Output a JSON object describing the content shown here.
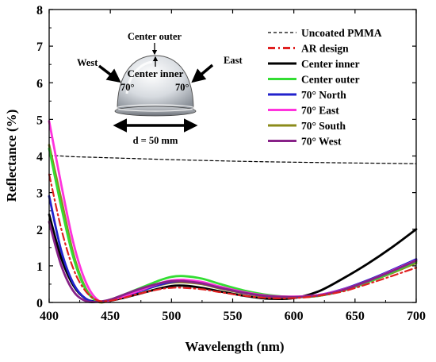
{
  "chart_data": {
    "type": "line",
    "xlabel": "Wavelength (nm)",
    "ylabel": "Reflectance (%)",
    "xlim": [
      400,
      700
    ],
    "ylim": [
      0,
      8
    ],
    "xticks": [
      400,
      450,
      500,
      550,
      600,
      650,
      700
    ],
    "yticks": [
      0,
      1,
      2,
      3,
      4,
      5,
      6,
      7,
      8
    ],
    "grid": false,
    "legend_position": "top-right",
    "series": [
      {
        "name": "Uncoated PMMA",
        "color": "#000000",
        "style": "dashed",
        "width": 1.2,
        "x": [
          400,
          410,
          420,
          440,
          460,
          500,
          550,
          600,
          650,
          700
        ],
        "y": [
          4.02,
          4.0,
          3.98,
          3.96,
          3.94,
          3.9,
          3.86,
          3.83,
          3.81,
          3.79
        ]
      },
      {
        "name": "AR design",
        "color": "#e02020",
        "style": "dashdot",
        "width": 2.2,
        "x": [
          400,
          410,
          420,
          430,
          440,
          450,
          460,
          475,
          490,
          500,
          510,
          525,
          540,
          560,
          580,
          600,
          620,
          640,
          660,
          680,
          700
        ],
        "y": [
          3.5,
          2.0,
          0.9,
          0.3,
          0.05,
          0.05,
          0.12,
          0.25,
          0.36,
          0.4,
          0.4,
          0.36,
          0.28,
          0.18,
          0.12,
          0.12,
          0.18,
          0.3,
          0.5,
          0.72,
          0.95
        ]
      },
      {
        "name": "Center inner",
        "color": "#000000",
        "style": "solid",
        "width": 2.8,
        "x": [
          400,
          410,
          420,
          430,
          440,
          450,
          460,
          475,
          490,
          500,
          510,
          525,
          540,
          560,
          580,
          600,
          620,
          640,
          660,
          680,
          700
        ],
        "y": [
          2.4,
          1.2,
          0.45,
          0.1,
          0.02,
          0.05,
          0.12,
          0.25,
          0.38,
          0.45,
          0.46,
          0.4,
          0.3,
          0.18,
          0.1,
          0.12,
          0.3,
          0.65,
          1.05,
          1.5,
          2.0
        ]
      },
      {
        "name": "Center outer",
        "color": "#33dd33",
        "style": "solid",
        "width": 2.8,
        "x": [
          400,
          410,
          420,
          430,
          440,
          450,
          460,
          475,
          490,
          500,
          510,
          525,
          540,
          560,
          580,
          600,
          620,
          640,
          660,
          680,
          700
        ],
        "y": [
          4.2,
          2.6,
          1.2,
          0.35,
          0.03,
          0.08,
          0.2,
          0.4,
          0.6,
          0.7,
          0.72,
          0.65,
          0.5,
          0.32,
          0.2,
          0.15,
          0.18,
          0.32,
          0.55,
          0.82,
          1.12
        ]
      },
      {
        "name": "70° North",
        "color": "#2222cc",
        "style": "solid",
        "width": 2.8,
        "x": [
          400,
          410,
          420,
          430,
          440,
          450,
          460,
          475,
          490,
          500,
          510,
          525,
          540,
          560,
          580,
          600,
          620,
          640,
          660,
          680,
          700
        ],
        "y": [
          2.9,
          1.4,
          0.5,
          0.1,
          0.02,
          0.06,
          0.16,
          0.32,
          0.48,
          0.56,
          0.58,
          0.52,
          0.4,
          0.26,
          0.17,
          0.15,
          0.2,
          0.36,
          0.6,
          0.88,
          1.18
        ]
      },
      {
        "name": "70° East",
        "color": "#ff33dd",
        "style": "solid",
        "width": 2.8,
        "x": [
          400,
          410,
          420,
          430,
          440,
          450,
          460,
          475,
          490,
          500,
          510,
          525,
          540,
          560,
          580,
          600,
          620,
          640,
          660,
          680,
          700
        ],
        "y": [
          4.95,
          3.2,
          1.6,
          0.55,
          0.06,
          0.06,
          0.16,
          0.34,
          0.52,
          0.6,
          0.62,
          0.56,
          0.43,
          0.28,
          0.18,
          0.16,
          0.2,
          0.35,
          0.58,
          0.86,
          1.15
        ]
      },
      {
        "name": "70° South",
        "color": "#8b8b1a",
        "style": "solid",
        "width": 2.8,
        "x": [
          400,
          410,
          420,
          430,
          440,
          450,
          460,
          475,
          490,
          500,
          510,
          525,
          540,
          560,
          580,
          600,
          620,
          640,
          660,
          680,
          700
        ],
        "y": [
          4.3,
          2.8,
          1.3,
          0.38,
          0.02,
          0.06,
          0.16,
          0.32,
          0.47,
          0.54,
          0.55,
          0.5,
          0.38,
          0.25,
          0.16,
          0.14,
          0.18,
          0.32,
          0.55,
          0.8,
          1.08
        ]
      },
      {
        "name": "70° West",
        "color": "#882288",
        "style": "solid",
        "width": 2.8,
        "x": [
          400,
          410,
          420,
          430,
          440,
          450,
          460,
          475,
          490,
          500,
          510,
          525,
          540,
          560,
          580,
          600,
          620,
          640,
          660,
          680,
          700
        ],
        "y": [
          2.2,
          1.0,
          0.3,
          0.04,
          0.02,
          0.08,
          0.2,
          0.38,
          0.52,
          0.58,
          0.58,
          0.52,
          0.4,
          0.26,
          0.17,
          0.15,
          0.19,
          0.34,
          0.58,
          0.85,
          1.14
        ]
      }
    ],
    "inset": {
      "label_center_outer": "Center outer",
      "label_center_inner": "Center inner",
      "label_west": "West",
      "label_east": "East",
      "label_angle_left": "70°",
      "label_angle_right": "70°",
      "label_diameter": "d = 50 mm"
    }
  }
}
